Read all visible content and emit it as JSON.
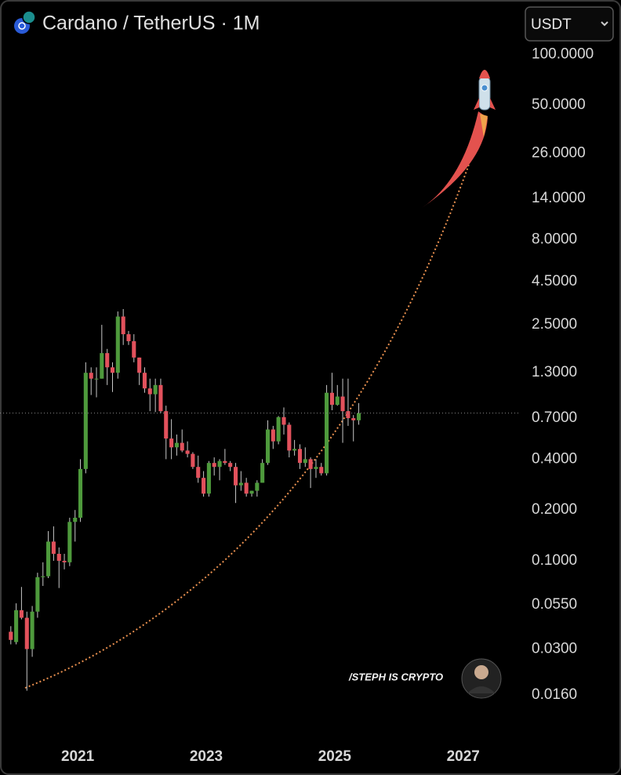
{
  "chart_data": {
    "type": "candlestick",
    "title": "Cardano / TetherUS · 1M",
    "currency": "USDT",
    "watermark": "/STEPH IS CRYPTO",
    "log_scale": true,
    "grid": false,
    "up_color": "#4e9a3c",
    "down_color": "#e2515c",
    "x": [
      2019.917,
      2020.0,
      2020.083,
      2020.167,
      2020.25,
      2020.333,
      2020.417,
      2020.5,
      2020.583,
      2020.667,
      2020.75,
      2020.833,
      2020.917,
      2021.0,
      2021.083,
      2021.167,
      2021.25,
      2021.333,
      2021.417,
      2021.5,
      2021.583,
      2021.667,
      2021.75,
      2021.833,
      2021.917,
      2022.0,
      2022.083,
      2022.167,
      2022.25,
      2022.333,
      2022.417,
      2022.5,
      2022.583,
      2022.667,
      2022.75,
      2022.833,
      2022.917,
      2023.0,
      2023.083,
      2023.167,
      2023.25,
      2023.333,
      2023.417,
      2023.5,
      2023.583,
      2023.667,
      2023.75,
      2023.833,
      2023.917,
      2024.0,
      2024.083,
      2024.167,
      2024.25,
      2024.333,
      2024.417,
      2024.5,
      2024.583,
      2024.667,
      2024.75,
      2024.833,
      2024.917,
      2025.0,
      2025.083,
      2025.167,
      2025.25,
      2025.333
    ],
    "open": [
      0.038,
      0.033,
      0.051,
      0.046,
      0.03,
      0.05,
      0.08,
      0.081,
      0.13,
      0.11,
      0.1,
      0.098,
      0.17,
      0.18,
      0.35,
      1.3,
      1.2,
      1.2,
      1.7,
      1.4,
      1.3,
      2.8,
      2.2,
      2.0,
      1.6,
      1.3,
      1.05,
      0.97,
      1.1,
      0.77,
      0.53,
      0.47,
      0.5,
      0.45,
      0.43,
      0.36,
      0.31,
      0.25,
      0.38,
      0.36,
      0.39,
      0.38,
      0.36,
      0.28,
      0.29,
      0.25,
      0.26,
      0.29,
      0.38,
      0.6,
      0.51,
      0.71,
      0.64,
      0.45,
      0.46,
      0.38,
      0.4,
      0.35,
      0.36,
      0.33,
      0.99,
      0.84,
      0.94,
      0.77,
      0.7,
      0.68
    ],
    "high": [
      0.041,
      0.056,
      0.07,
      0.05,
      0.054,
      0.085,
      0.098,
      0.15,
      0.16,
      0.12,
      0.11,
      0.18,
      0.2,
      0.4,
      1.5,
      1.4,
      1.4,
      2.5,
      1.8,
      1.5,
      3.0,
      3.1,
      2.3,
      2.2,
      1.6,
      1.4,
      1.2,
      1.2,
      1.2,
      0.83,
      0.69,
      0.56,
      0.6,
      0.51,
      0.44,
      0.42,
      0.34,
      0.39,
      0.41,
      0.4,
      0.46,
      0.39,
      0.38,
      0.34,
      0.31,
      0.26,
      0.3,
      0.4,
      0.68,
      0.63,
      0.72,
      0.81,
      0.66,
      0.52,
      0.49,
      0.47,
      0.41,
      0.4,
      0.38,
      1.1,
      1.3,
      1.1,
      1.2,
      1.2,
      0.73,
      0.86
    ],
    "low": [
      0.032,
      0.032,
      0.045,
      0.017,
      0.027,
      0.046,
      0.071,
      0.079,
      0.1,
      0.069,
      0.089,
      0.093,
      0.13,
      0.17,
      0.33,
      0.96,
      0.93,
      1.2,
      1.1,
      1.0,
      1.2,
      1.9,
      1.9,
      1.5,
      1.1,
      0.99,
      0.77,
      0.76,
      0.75,
      0.4,
      0.4,
      0.42,
      0.44,
      0.41,
      0.35,
      0.29,
      0.24,
      0.24,
      0.32,
      0.3,
      0.37,
      0.34,
      0.22,
      0.26,
      0.24,
      0.24,
      0.24,
      0.29,
      0.37,
      0.46,
      0.49,
      0.56,
      0.41,
      0.42,
      0.35,
      0.36,
      0.27,
      0.31,
      0.32,
      0.32,
      0.78,
      0.83,
      0.5,
      0.63,
      0.51,
      0.64
    ],
    "close": [
      0.034,
      0.051,
      0.046,
      0.03,
      0.05,
      0.08,
      0.081,
      0.13,
      0.11,
      0.1,
      0.098,
      0.17,
      0.18,
      0.35,
      1.3,
      1.2,
      1.2,
      1.7,
      1.4,
      1.3,
      2.8,
      2.2,
      2.0,
      1.6,
      1.3,
      1.05,
      0.97,
      1.1,
      0.77,
      0.53,
      0.47,
      0.5,
      0.45,
      0.43,
      0.36,
      0.31,
      0.25,
      0.38,
      0.36,
      0.39,
      0.38,
      0.36,
      0.28,
      0.29,
      0.25,
      0.26,
      0.29,
      0.38,
      0.6,
      0.51,
      0.71,
      0.64,
      0.45,
      0.46,
      0.38,
      0.4,
      0.35,
      0.36,
      0.33,
      0.99,
      0.84,
      0.94,
      0.77,
      0.7,
      0.68,
      0.75
    ],
    "xlim": [
      2019.79,
      2027.87
    ],
    "xticks": [
      2021,
      2023,
      2025,
      2027
    ],
    "ylim": [
      0.009,
      210
    ],
    "yticks": [
      {
        "value": 100,
        "label": "100.0000"
      },
      {
        "value": 50,
        "label": "50.0000"
      },
      {
        "value": 26,
        "label": "26.0000"
      },
      {
        "value": 14,
        "label": "14.0000"
      },
      {
        "value": 8,
        "label": "8.0000"
      },
      {
        "value": 4.5,
        "label": "4.5000"
      },
      {
        "value": 2.5,
        "label": "2.5000"
      },
      {
        "value": 1.3,
        "label": "1.3000"
      },
      {
        "value": 0.7,
        "label": "0.7000"
      },
      {
        "value": 0.4,
        "label": "0.4000"
      },
      {
        "value": 0.2,
        "label": "0.2000"
      },
      {
        "value": 0.1,
        "label": "0.1000"
      },
      {
        "value": 0.055,
        "label": "0.0550"
      },
      {
        "value": 0.03,
        "label": "0.0300"
      },
      {
        "value": 0.016,
        "label": "0.0160"
      }
    ]
  }
}
